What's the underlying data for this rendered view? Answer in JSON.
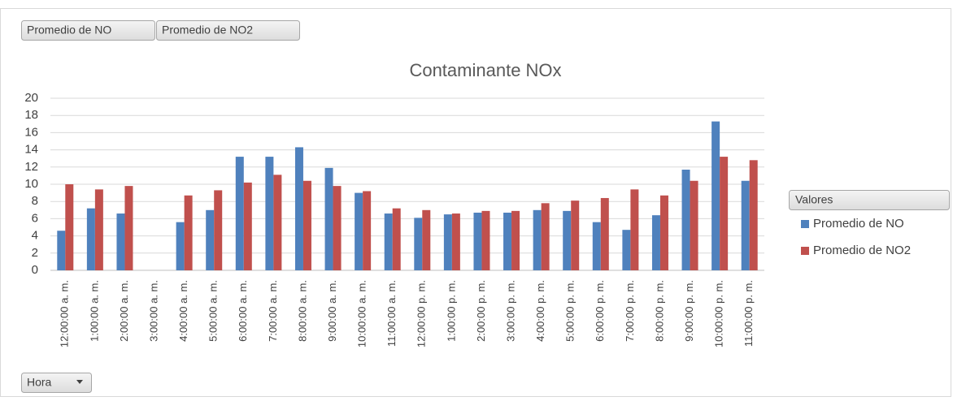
{
  "chart_data": {
    "type": "bar",
    "title": "Contaminante NOx",
    "field_buttons": [
      "Promedio de NO",
      "Promedio de NO2"
    ],
    "axis_field": "Hora",
    "legend_title": "Valores",
    "legend": "right",
    "grid": true,
    "categories": [
      "12:00:00 a. m.",
      "1:00:00 a. m.",
      "2:00:00 a. m.",
      "3:00:00 a. m.",
      "4:00:00 a. m.",
      "5:00:00 a. m.",
      "6:00:00 a. m.",
      "7:00:00 a. m.",
      "8:00:00 a. m.",
      "9:00:00 a. m.",
      "10:00:00 a. m.",
      "11:00:00 a. m.",
      "12:00:00 p. m.",
      "1:00:00 p. m.",
      "2:00:00 p. m.",
      "3:00:00 p. m.",
      "4:00:00 p. m.",
      "5:00:00 p. m.",
      "6:00:00 p. m.",
      "7:00:00 p. m.",
      "8:00:00 p. m.",
      "9:00:00 p. m.",
      "10:00:00 p. m.",
      "11:00:00 p. m."
    ],
    "series": [
      {
        "name": "Promedio de NO",
        "color": "#4f81bd",
        "values": [
          4.6,
          7.2,
          6.6,
          null,
          5.6,
          7.0,
          13.2,
          13.2,
          14.3,
          11.9,
          9.0,
          6.6,
          6.1,
          6.5,
          6.7,
          6.7,
          7.0,
          6.9,
          5.6,
          4.7,
          6.4,
          11.7,
          17.3,
          10.4
        ]
      },
      {
        "name": "Promedio de NO2",
        "color": "#c0504d",
        "values": [
          10.0,
          9.4,
          9.8,
          null,
          8.7,
          9.3,
          10.2,
          11.1,
          10.4,
          9.8,
          9.2,
          7.2,
          7.0,
          6.6,
          6.9,
          6.9,
          7.8,
          8.1,
          8.4,
          9.4,
          8.7,
          10.4,
          13.2,
          12.8
        ]
      }
    ],
    "ylim": [
      0,
      20
    ],
    "yticks": [
      0,
      2,
      4,
      6,
      8,
      10,
      12,
      14,
      16,
      18,
      20
    ]
  }
}
